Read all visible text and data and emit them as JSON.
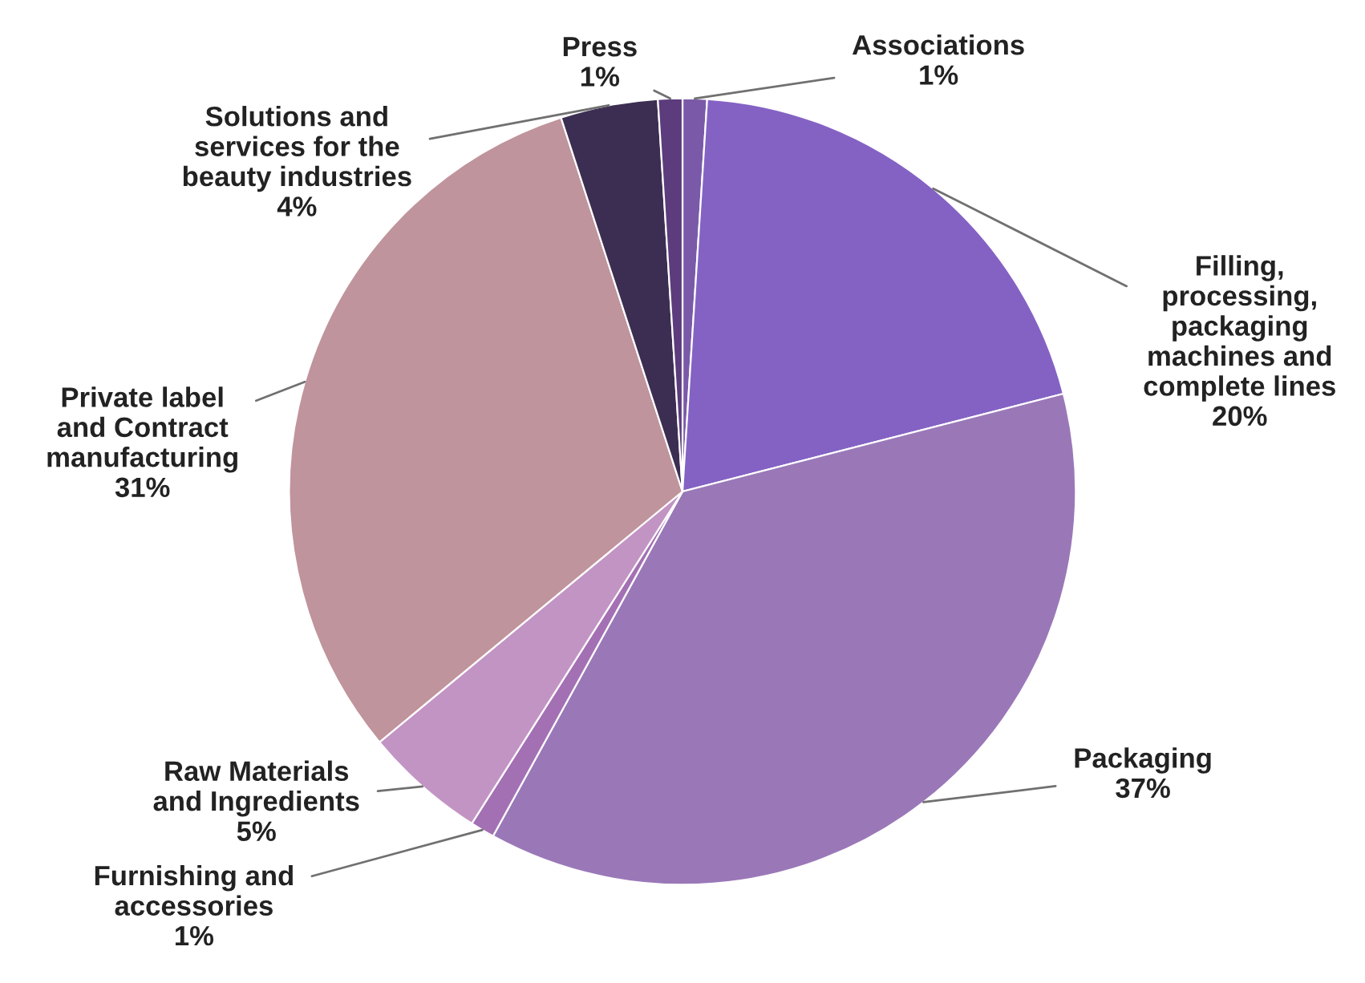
{
  "chart_data": {
    "type": "pie",
    "categories": [
      "Associations",
      "Filling,\nprocessing,\npackaging\nmachines and\ncomplete lines",
      "Packaging",
      "Furnishing and\naccessories",
      "Raw Materials\nand Ingredients",
      "Private label\nand Contract\nmanufacturing",
      "Solutions and\nservices for the\nbeauty industries",
      "Press"
    ],
    "values": [
      1,
      20,
      37,
      1,
      5,
      31,
      4,
      1
    ],
    "value_labels": [
      "1%",
      "20%",
      "37%",
      "1%",
      "5%",
      "31%",
      "4%",
      "1%"
    ],
    "colors": [
      "#7a5aa8",
      "#8462c4",
      "#9a78b8",
      "#a470b4",
      "#c294c4",
      "#c0949c",
      "#3c2e52",
      "#5c3c7c"
    ]
  }
}
